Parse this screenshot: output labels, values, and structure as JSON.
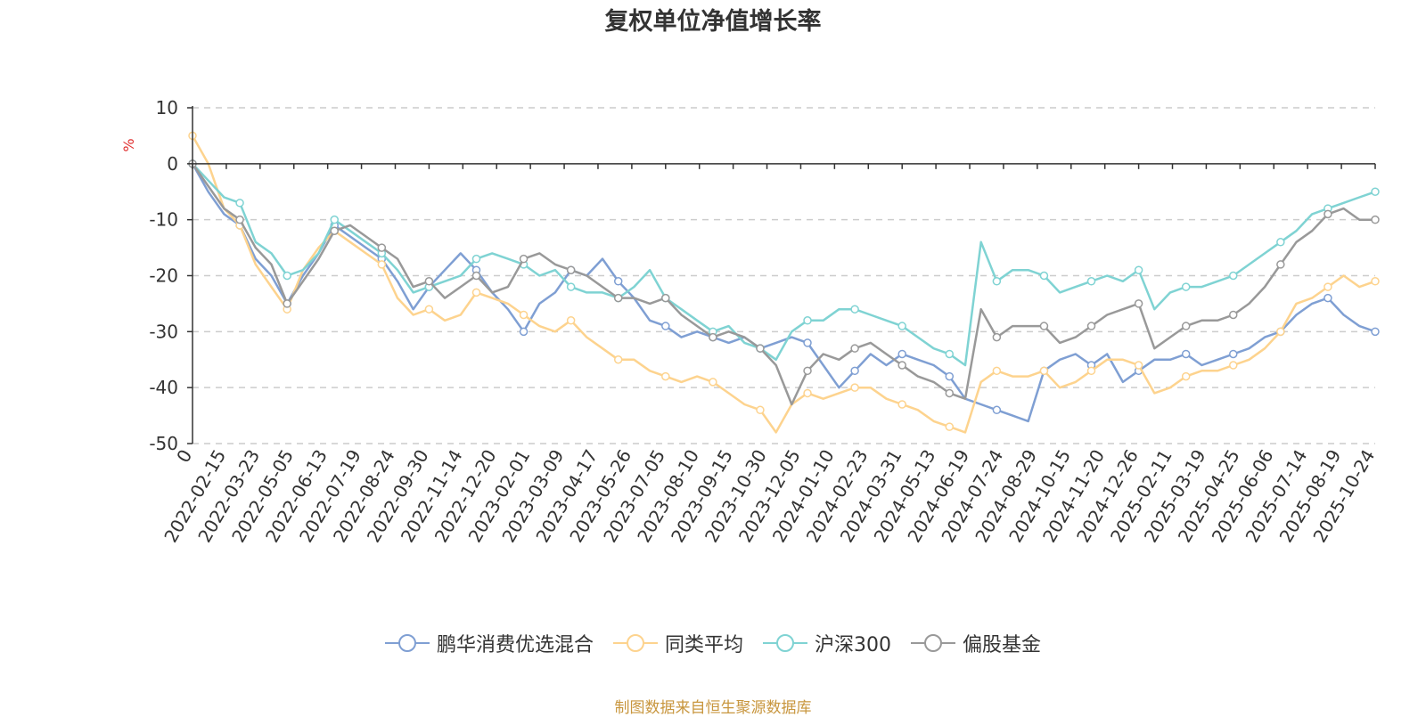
{
  "chart_data": {
    "type": "line",
    "title": "复权单位净值增长率",
    "ylabel": "%",
    "ylim": [
      -50,
      10
    ],
    "yticks": [
      10,
      0,
      -10,
      -20,
      -30,
      -40,
      -50
    ],
    "x_first_label": "0",
    "x_tick_labels": [
      "2022-02-15",
      "2022-03-23",
      "2022-05-05",
      "2022-06-13",
      "2022-07-19",
      "2022-08-24",
      "2022-09-30",
      "2022-11-14",
      "2022-12-20",
      "2023-02-01",
      "2023-03-09",
      "2023-04-17",
      "2023-05-26",
      "2023-07-05",
      "2023-08-10",
      "2023-09-15",
      "2023-10-30",
      "2023-12-05",
      "2024-01-10",
      "2024-02-23",
      "2024-03-31",
      "2024-05-13",
      "2024-06-19",
      "2024-07-24",
      "2024-08-29",
      "2024-10-15",
      "2024-11-20",
      "2024-12-26",
      "2025-02-11",
      "2025-03-19",
      "2025-04-25",
      "2025-06-06",
      "2025-07-14",
      "2025-08-19",
      "2025-10-24"
    ],
    "series": [
      {
        "name": "鹏华消费优选混合",
        "color": "#7f9fd3",
        "values": [
          0,
          -5,
          -9,
          -11,
          -17,
          -20,
          -25,
          -20,
          -16,
          -11,
          -13,
          -15,
          -17,
          -21,
          -26,
          -22,
          -19,
          -16,
          -19,
          -23,
          -26,
          -30,
          -25,
          -23,
          -19,
          -20,
          -17,
          -21,
          -24,
          -28,
          -29,
          -31,
          -30,
          -31,
          -32,
          -31,
          -33,
          -32,
          -31,
          -32,
          -36,
          -40,
          -37,
          -34,
          -36,
          -34,
          -35,
          -36,
          -38,
          -42,
          -43,
          -44,
          -45,
          -46,
          -37,
          -35,
          -34,
          -36,
          -34,
          -39,
          -37,
          -35,
          -35,
          -34,
          -36,
          -35,
          -34,
          -33,
          -31,
          -30,
          -27,
          -25,
          -24,
          -27,
          -29,
          -30
        ]
      },
      {
        "name": "同类平均",
        "color": "#fdd38e",
        "values": [
          5,
          0,
          -8,
          -11,
          -18,
          -22,
          -26,
          -19,
          -15,
          -12,
          -14,
          -16,
          -18,
          -24,
          -27,
          -26,
          -28,
          -27,
          -23,
          -24,
          -25,
          -27,
          -29,
          -30,
          -28,
          -31,
          -33,
          -35,
          -35,
          -37,
          -38,
          -39,
          -38,
          -39,
          -41,
          -43,
          -44,
          -48,
          -43,
          -41,
          -42,
          -41,
          -40,
          -40,
          -42,
          -43,
          -44,
          -46,
          -47,
          -48,
          -39,
          -37,
          -38,
          -38,
          -37,
          -40,
          -39,
          -37,
          -35,
          -35,
          -36,
          -41,
          -40,
          -38,
          -37,
          -37,
          -36,
          -35,
          -33,
          -30,
          -25,
          -24,
          -22,
          -20,
          -22,
          -21
        ]
      },
      {
        "name": "沪深300",
        "color": "#7fd3d3",
        "values": [
          0,
          -3,
          -6,
          -7,
          -14,
          -16,
          -20,
          -19,
          -16,
          -10,
          -12,
          -14,
          -16,
          -19,
          -23,
          -22,
          -21,
          -20,
          -17,
          -16,
          -17,
          -18,
          -20,
          -19,
          -22,
          -23,
          -23,
          -24,
          -22,
          -19,
          -24,
          -26,
          -28,
          -30,
          -29,
          -32,
          -33,
          -35,
          -30,
          -28,
          -28,
          -26,
          -26,
          -27,
          -28,
          -29,
          -31,
          -33,
          -34,
          -36,
          -14,
          -21,
          -19,
          -19,
          -20,
          -23,
          -22,
          -21,
          -20,
          -21,
          -19,
          -26,
          -23,
          -22,
          -22,
          -21,
          -20,
          -18,
          -16,
          -14,
          -12,
          -9,
          -8,
          -7,
          -6,
          -5
        ]
      },
      {
        "name": "偏股基金",
        "color": "#999999",
        "values": [
          0,
          -4,
          -8,
          -10,
          -15,
          -18,
          -25,
          -21,
          -17,
          -12,
          -11,
          -13,
          -15,
          -17,
          -22,
          -21,
          -24,
          -22,
          -20,
          -23,
          -22,
          -17,
          -16,
          -18,
          -19,
          -20,
          -22,
          -24,
          -24,
          -25,
          -24,
          -27,
          -29,
          -31,
          -30,
          -31,
          -33,
          -36,
          -43,
          -37,
          -34,
          -35,
          -33,
          -32,
          -34,
          -36,
          -38,
          -39,
          -41,
          -42,
          -26,
          -31,
          -29,
          -29,
          -29,
          -32,
          -31,
          -29,
          -27,
          -26,
          -25,
          -33,
          -31,
          -29,
          -28,
          -28,
          -27,
          -25,
          -22,
          -18,
          -14,
          -12,
          -9,
          -8,
          -10,
          -10
        ]
      }
    ]
  },
  "source_note": "制图数据来自恒生聚源数据库"
}
